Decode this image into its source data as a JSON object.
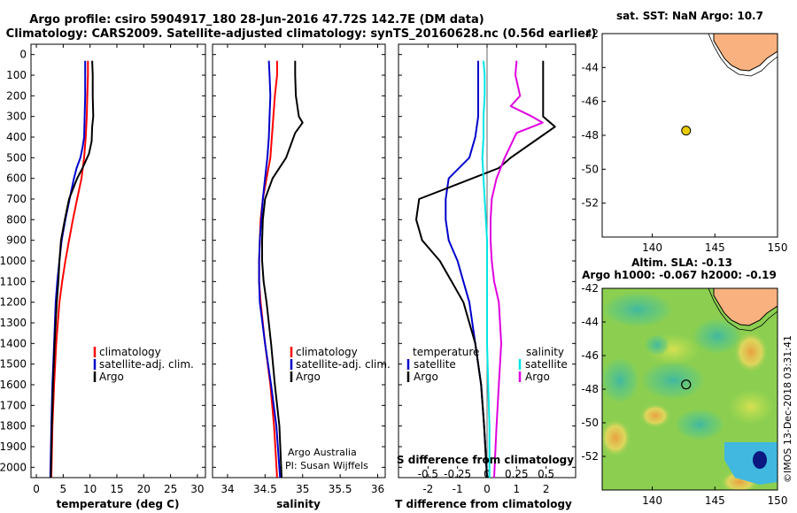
{
  "header": {
    "title_line1": "Argo profile: csiro 5904917_180 28-Jun-2016 47.72S 142.7E (DM data)",
    "title_line2": "Climatology: CARS2009. Satellite-adjusted climatology: synTS_20160628.nc (0.56d earlier)"
  },
  "colors": {
    "climatology": "#ff0000",
    "satellite": "#0000cc",
    "argo": "#000000",
    "sat_salinity": "#00e5e5",
    "argo_salinity": "#e000e0",
    "land": "#f9b27f",
    "float_marker": "#e6cc00"
  },
  "depth_ticks": [
    "0",
    "100",
    "200",
    "300",
    "400",
    "500",
    "600",
    "700",
    "800",
    "900",
    "1000",
    "1100",
    "1200",
    "1300",
    "1400",
    "1500",
    "1600",
    "1700",
    "1800",
    "1900",
    "2000"
  ],
  "chart_data": [
    {
      "type": "line",
      "title": "",
      "xlabel": "temperature (deg C)",
      "ylabel": "depth",
      "xlim": [
        -1,
        31.5
      ],
      "ylim": [
        2050,
        0
      ],
      "xticks": [
        "0",
        "5",
        "10",
        "15",
        "20",
        "25",
        "30"
      ],
      "legend": [
        "climatology",
        "satellite-adj. clim.",
        "Argo"
      ],
      "series": [
        {
          "name": "climatology",
          "color": "#ff0000",
          "depth": [
            30,
            100,
            200,
            300,
            400,
            500,
            600,
            700,
            800,
            900,
            1000,
            1100,
            1200,
            1400,
            1600,
            1800,
            2050
          ],
          "values": [
            9.6,
            9.6,
            9.5,
            9.4,
            9.2,
            8.9,
            8.4,
            7.6,
            6.8,
            6.1,
            5.4,
            4.8,
            4.3,
            3.7,
            3.3,
            3.0,
            2.8
          ]
        },
        {
          "name": "satellite-adj. clim.",
          "color": "#0000cc",
          "depth": [
            30,
            100,
            200,
            300,
            400,
            450,
            500,
            550,
            600,
            700,
            800,
            900,
            1000,
            1100,
            1200,
            1400,
            1600,
            1800,
            2050
          ],
          "values": [
            9.1,
            9.1,
            9.1,
            9.0,
            8.9,
            8.6,
            8.2,
            7.5,
            7.0,
            6.2,
            5.4,
            4.7,
            4.3,
            3.9,
            3.6,
            3.3,
            3.0,
            2.8,
            2.6
          ]
        },
        {
          "name": "Argo",
          "color": "#000000",
          "depth": [
            30,
            100,
            200,
            300,
            350,
            420,
            480,
            550,
            600,
            700,
            800,
            900,
            1000,
            1100,
            1200,
            1400,
            1600,
            1800,
            2050
          ],
          "values": [
            10.4,
            10.5,
            10.5,
            10.6,
            10.4,
            10.3,
            9.8,
            8.6,
            7.6,
            6.1,
            5.3,
            4.6,
            4.3,
            4.1,
            3.8,
            3.4,
            3.1,
            2.9,
            2.7
          ]
        }
      ]
    },
    {
      "type": "line",
      "title": "",
      "xlabel": "salinity",
      "ylabel": "depth",
      "xlim": [
        33.8,
        36.1
      ],
      "ylim": [
        2050,
        0
      ],
      "xticks": [
        "34",
        "34.5",
        "35",
        "35.5",
        "36"
      ],
      "legend": [
        "climatology",
        "satellite-adj. clim.",
        "Argo"
      ],
      "annotation_line1": "Argo Australia",
      "annotation_line2": "PI: Susan Wijffels",
      "series": [
        {
          "name": "climatology",
          "color": "#ff0000",
          "depth": [
            30,
            100,
            200,
            300,
            400,
            500,
            600,
            700,
            800,
            900,
            1000,
            1100,
            1200,
            1400,
            1600,
            1800,
            2050
          ],
          "values": [
            34.66,
            34.66,
            34.63,
            34.61,
            34.59,
            34.57,
            34.52,
            34.47,
            34.44,
            34.43,
            34.42,
            34.42,
            34.44,
            34.5,
            34.57,
            34.62,
            34.66
          ]
        },
        {
          "name": "satellite-adj. clim.",
          "color": "#0000cc",
          "depth": [
            30,
            100,
            200,
            300,
            400,
            500,
            600,
            700,
            800,
            900,
            1000,
            1100,
            1200,
            1400,
            1600,
            1800,
            2050
          ],
          "values": [
            34.55,
            34.56,
            34.57,
            34.56,
            34.55,
            34.53,
            34.5,
            34.47,
            34.45,
            34.43,
            34.42,
            34.42,
            34.43,
            34.5,
            34.58,
            34.65,
            34.7
          ]
        },
        {
          "name": "Argo",
          "color": "#000000",
          "depth": [
            30,
            100,
            200,
            300,
            330,
            380,
            500,
            600,
            700,
            800,
            900,
            1000,
            1100,
            1200,
            1400,
            1600,
            1800,
            2050
          ],
          "values": [
            34.9,
            34.9,
            34.91,
            34.95,
            35.0,
            34.9,
            34.78,
            34.6,
            34.5,
            34.47,
            34.46,
            34.46,
            34.48,
            34.52,
            34.58,
            34.63,
            34.69,
            34.72
          ]
        }
      ]
    },
    {
      "type": "line",
      "title": "",
      "xlabel": "T difference from climatology",
      "ylabel": "depth",
      "xlim": [
        -3,
        3
      ],
      "ylim": [
        2050,
        0
      ],
      "xticks": [
        "-2",
        "-1",
        "0",
        "1",
        "2"
      ],
      "top_xlabel": "S difference from climatology",
      "top_xticks": [
        "-0.5",
        "-0.25",
        "0",
        "0.25",
        "0.5"
      ],
      "legend_temperature_heading": "temperature",
      "legend_salinity_heading": "salinity",
      "legend_temperature": [
        "satellite",
        "Argo"
      ],
      "legend_salinity": [
        "satellite",
        "Argo"
      ],
      "series": [
        {
          "name": "temperature satellite",
          "color": "#0000cc",
          "depth": [
            30,
            100,
            200,
            300,
            400,
            500,
            600,
            700,
            800,
            900,
            1000,
            1100,
            1200,
            1400,
            1600,
            1800,
            2050
          ],
          "values": [
            -0.3,
            -0.3,
            -0.3,
            -0.3,
            -0.4,
            -0.6,
            -1.3,
            -1.4,
            -1.4,
            -1.3,
            -1.0,
            -0.8,
            -0.6,
            -0.4,
            -0.2,
            -0.1,
            0.0
          ]
        },
        {
          "name": "temperature Argo",
          "color": "#000000",
          "depth": [
            30,
            100,
            200,
            300,
            350,
            400,
            500,
            550,
            600,
            700,
            800,
            900,
            1000,
            1100,
            1200,
            1400,
            1600,
            1800,
            2050
          ],
          "values": [
            1.9,
            1.9,
            1.9,
            1.9,
            2.3,
            1.8,
            0.8,
            0.4,
            -0.5,
            -2.3,
            -2.4,
            -2.2,
            -1.6,
            -1.2,
            -0.8,
            -0.4,
            -0.2,
            -0.1,
            0.0
          ]
        },
        {
          "name": "salinity satellite",
          "color": "#00e5e5",
          "depth": [
            30,
            100,
            200,
            300,
            400,
            500,
            600,
            700,
            800,
            900,
            1000,
            1200,
            1400,
            1600,
            1800,
            2050
          ],
          "values": [
            -0.03,
            -0.02,
            -0.02,
            -0.03,
            -0.03,
            -0.04,
            -0.03,
            -0.02,
            -0.01,
            0.0,
            0.0,
            0.0,
            0.0,
            0.01,
            0.02,
            0.02
          ]
        },
        {
          "name": "salinity Argo",
          "color": "#e000e0",
          "depth": [
            30,
            100,
            200,
            250,
            300,
            330,
            380,
            500,
            600,
            700,
            800,
            900,
            1000,
            1100,
            1200,
            1400,
            1600,
            1800,
            2050
          ],
          "values": [
            0.25,
            0.24,
            0.28,
            0.2,
            0.38,
            0.47,
            0.25,
            0.15,
            0.08,
            0.04,
            0.03,
            0.03,
            0.04,
            0.06,
            0.1,
            0.12,
            0.1,
            0.08,
            0.06
          ]
        }
      ]
    },
    {
      "type": "scatter",
      "title": "sat. SST: NaN Argo: 10.7",
      "xlim": [
        136,
        150
      ],
      "ylim": [
        -54,
        -42
      ],
      "xticks": [
        "140",
        "145",
        "150"
      ],
      "yticks": [
        "-42",
        "-44",
        "-46",
        "-48",
        "-50",
        "-52"
      ],
      "points": [
        {
          "lon": 142.7,
          "lat": -47.72,
          "label": "Argo float"
        }
      ]
    },
    {
      "type": "heatmap",
      "title_line1": "Altim. SLA: -0.13",
      "title_line2": "Argo h1000: -0.067 h2000: -0.19",
      "xlim": [
        136,
        150
      ],
      "ylim": [
        -54,
        -42
      ],
      "xticks": [
        "140",
        "145",
        "150"
      ],
      "yticks": [
        "-42",
        "-44",
        "-46",
        "-48",
        "-50",
        "-52"
      ],
      "points": [
        {
          "lon": 142.7,
          "lat": -47.72,
          "label": "Argo float"
        }
      ]
    }
  ],
  "footer": {
    "stamp": "©IMOS 13-Dec-2018 03:31:41"
  }
}
